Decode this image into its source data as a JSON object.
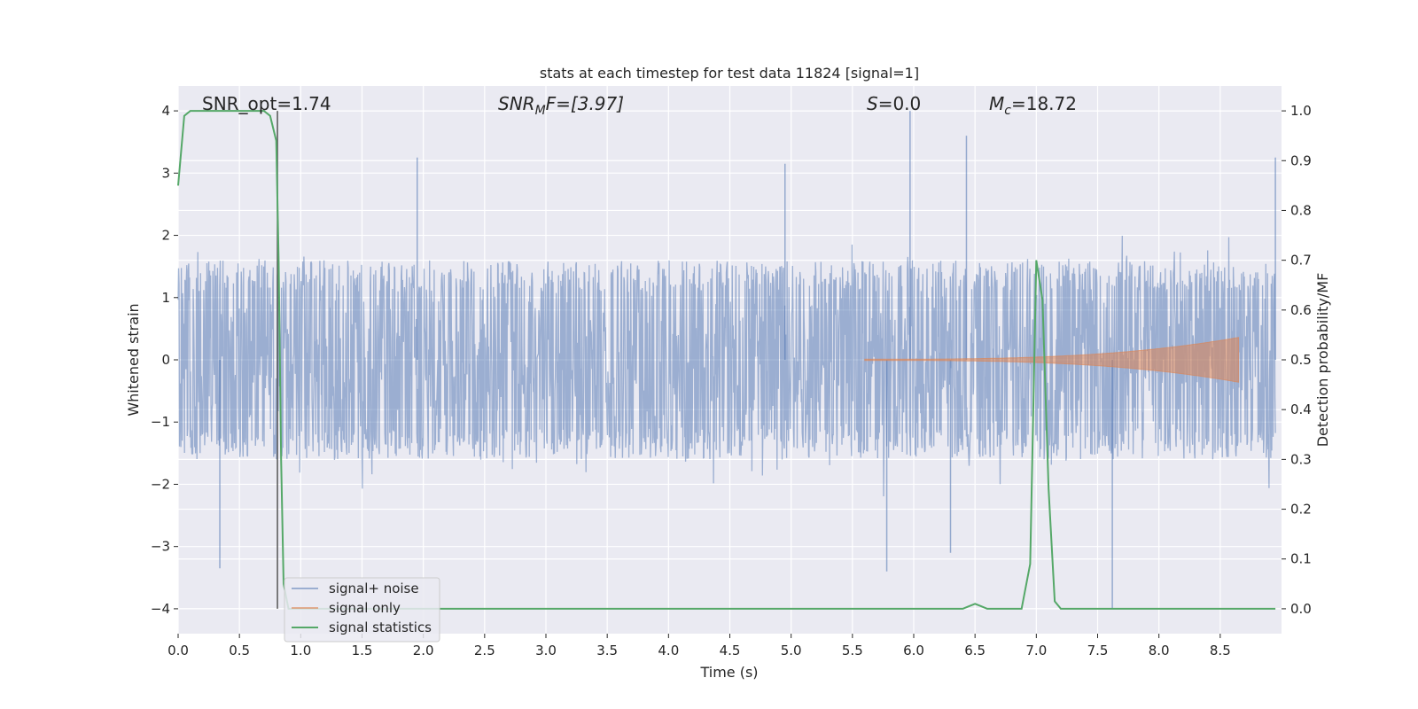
{
  "chart_data": {
    "type": "line",
    "title": "stats at each timestep for test data 11824 [signal=1]",
    "xlabel": "Time (s)",
    "ylabel": "Whitened strain",
    "ylabel_right": "Detection probability/MF",
    "xlim": [
      0.0,
      9.0
    ],
    "ylim": [
      -4.4,
      4.4
    ],
    "ylim_right": [
      -0.05,
      1.05
    ],
    "grid": true,
    "legend_placement": "lower-left",
    "x_ticks": [
      "0.0",
      "0.5",
      "1.0",
      "1.5",
      "2.0",
      "2.5",
      "3.0",
      "3.5",
      "4.0",
      "4.5",
      "5.0",
      "5.5",
      "6.0",
      "6.5",
      "7.0",
      "7.5",
      "8.0",
      "8.5"
    ],
    "y_ticks": [
      {
        "value": 4,
        "label": "4"
      },
      {
        "value": 3,
        "label": "3"
      },
      {
        "value": 2,
        "label": "2"
      },
      {
        "value": 1,
        "label": "1"
      },
      {
        "value": 0,
        "label": "0"
      },
      {
        "value": -1,
        "label": "−1"
      },
      {
        "value": -2,
        "label": "−2"
      },
      {
        "value": -3,
        "label": "−3"
      },
      {
        "value": -4,
        "label": "−4"
      }
    ],
    "y_ticks_right": [
      "1.0",
      "0.9",
      "0.8",
      "0.7",
      "0.6",
      "0.5",
      "0.4",
      "0.3",
      "0.2",
      "0.1",
      "0.0"
    ],
    "annotations": {
      "snr_opt": "SNR_opt=1.74",
      "snr_mf_main": "SNR",
      "snr_mf_sub": "M",
      "snr_mf_rest": "F=[3.97]",
      "s_main": "S",
      "s_rest": "=0.0",
      "mc_main": "M",
      "mc_sub": "c",
      "mc_rest": "=18.72"
    },
    "vline_x": 0.81,
    "series": [
      {
        "name": "signal+ noise",
        "color": "#4c72b0",
        "noise_envelope": {
          "typical_abs": 1.5,
          "max_peak": 4.0,
          "min_peak": -4.0
        },
        "peaks": [
          {
            "x": 1.95,
            "y": 3.25
          },
          {
            "x": 4.95,
            "y": 3.15
          },
          {
            "x": 5.97,
            "y": 4.0
          },
          {
            "x": 6.43,
            "y": 3.6
          },
          {
            "x": 8.95,
            "y": 3.25
          },
          {
            "x": 0.34,
            "y": -3.35
          },
          {
            "x": 5.78,
            "y": -3.4
          },
          {
            "x": 7.62,
            "y": -4.0
          },
          {
            "x": 6.3,
            "y": -3.1
          }
        ]
      },
      {
        "name": "signal only",
        "color": "#dd8452",
        "chirp": {
          "start": 5.6,
          "end": 8.65,
          "max_amp": 0.35
        }
      },
      {
        "name": "signal statistics",
        "color": "#55a868",
        "x": [
          0.0,
          0.05,
          0.1,
          0.15,
          0.2,
          0.3,
          0.4,
          0.5,
          0.6,
          0.7,
          0.75,
          0.8,
          0.82,
          0.84,
          0.86,
          0.9,
          1.0,
          2.0,
          3.0,
          4.0,
          5.0,
          6.0,
          6.4,
          6.45,
          6.5,
          6.55,
          6.6,
          6.7,
          6.8,
          6.88,
          6.95,
          7.0,
          7.05,
          7.1,
          7.15,
          7.2,
          7.3,
          8.0,
          8.95
        ],
        "values": [
          0.85,
          0.99,
          1.0,
          1.0,
          1.0,
          1.0,
          1.0,
          1.0,
          1.0,
          1.0,
          0.99,
          0.94,
          0.7,
          0.3,
          0.05,
          0.0,
          0.0,
          0.0,
          0.0,
          0.0,
          0.0,
          0.0,
          0.0,
          0.005,
          0.01,
          0.005,
          0.0,
          0.0,
          0.0,
          0.0,
          0.09,
          0.7,
          0.62,
          0.24,
          0.015,
          0.0,
          0.0,
          0.0,
          0.0
        ]
      }
    ]
  }
}
